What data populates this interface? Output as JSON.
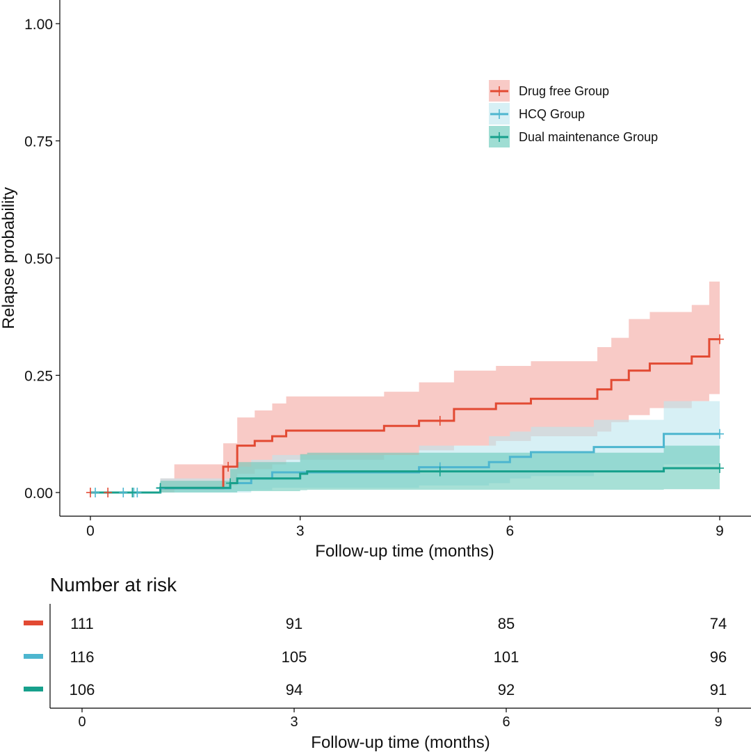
{
  "chart_data": {
    "type": "step",
    "title": "",
    "xlabel": "Follow-up time (months)",
    "ylabel": "Relapse probability",
    "xlim": [
      0,
      9
    ],
    "ylim": [
      0,
      1
    ],
    "x_ticks": [
      "0",
      "3",
      "6",
      "9"
    ],
    "y_ticks": [
      "0.00",
      "0.25",
      "0.50",
      "0.75",
      "1.00"
    ],
    "legend_placement": "top-right",
    "series": [
      {
        "name": "Drug free Group",
        "color": "#E24A33",
        "band_color": "#F4A7A0",
        "steps": [
          [
            0,
            0
          ],
          [
            1,
            0.009
          ],
          [
            1.9,
            0.055
          ],
          [
            2.1,
            0.1
          ],
          [
            2.35,
            0.11
          ],
          [
            2.6,
            0.12
          ],
          [
            2.8,
            0.132
          ],
          [
            4.2,
            0.142
          ],
          [
            4.7,
            0.153
          ],
          [
            5.2,
            0.178
          ],
          [
            5.8,
            0.19
          ],
          [
            6.3,
            0.2
          ],
          [
            7.25,
            0.22
          ],
          [
            7.45,
            0.24
          ],
          [
            7.7,
            0.26
          ],
          [
            8.0,
            0.275
          ],
          [
            8.6,
            0.29
          ],
          [
            8.85,
            0.327
          ],
          [
            9,
            0.327
          ]
        ],
        "lower": [
          [
            0,
            0
          ],
          [
            1,
            0
          ],
          [
            1.2,
            0.01
          ],
          [
            1.9,
            0.015
          ],
          [
            2.1,
            0.04
          ],
          [
            2.35,
            0.05
          ],
          [
            2.6,
            0.06
          ],
          [
            2.8,
            0.07
          ],
          [
            4.2,
            0.08
          ],
          [
            4.7,
            0.09
          ],
          [
            5.2,
            0.1
          ],
          [
            5.8,
            0.11
          ],
          [
            6.3,
            0.12
          ],
          [
            7.25,
            0.13
          ],
          [
            7.45,
            0.15
          ],
          [
            7.7,
            0.165
          ],
          [
            8.0,
            0.18
          ],
          [
            8.6,
            0.195
          ],
          [
            8.85,
            0.21
          ],
          [
            9,
            0.21
          ]
        ],
        "upper": [
          [
            0,
            0
          ],
          [
            1,
            0.03
          ],
          [
            1.2,
            0.06
          ],
          [
            1.9,
            0.105
          ],
          [
            2.1,
            0.16
          ],
          [
            2.35,
            0.175
          ],
          [
            2.6,
            0.19
          ],
          [
            2.8,
            0.205
          ],
          [
            4.2,
            0.215
          ],
          [
            4.7,
            0.235
          ],
          [
            5.2,
            0.26
          ],
          [
            5.8,
            0.27
          ],
          [
            6.3,
            0.28
          ],
          [
            7.25,
            0.31
          ],
          [
            7.45,
            0.33
          ],
          [
            7.7,
            0.37
          ],
          [
            8.0,
            0.385
          ],
          [
            8.6,
            0.4
          ],
          [
            8.85,
            0.45
          ],
          [
            9,
            0.45
          ]
        ],
        "censor_x": [
          0,
          0.25,
          1.97,
          5.0,
          9.0
        ],
        "at_risk": [
          111,
          91,
          85,
          74
        ]
      },
      {
        "name": "HCQ Group",
        "color": "#4DB6CF",
        "band_color": "#BDE6EF",
        "steps": [
          [
            0,
            0
          ],
          [
            1,
            0.009
          ],
          [
            2,
            0.02
          ],
          [
            2.3,
            0.03
          ],
          [
            2.6,
            0.043
          ],
          [
            4.7,
            0.054
          ],
          [
            5.7,
            0.065
          ],
          [
            6.0,
            0.076
          ],
          [
            6.3,
            0.086
          ],
          [
            7.2,
            0.097
          ],
          [
            8.2,
            0.125
          ],
          [
            9,
            0.125
          ]
        ],
        "lower": [
          [
            0,
            0
          ],
          [
            1,
            0
          ],
          [
            2,
            0
          ],
          [
            2.3,
            0.005
          ],
          [
            2.6,
            0.01
          ],
          [
            4.7,
            0.015
          ],
          [
            5.7,
            0.02
          ],
          [
            6.0,
            0.03
          ],
          [
            6.3,
            0.035
          ],
          [
            7.2,
            0.045
          ],
          [
            8.2,
            0.06
          ],
          [
            9,
            0.06
          ]
        ],
        "upper": [
          [
            0,
            0
          ],
          [
            1,
            0.03
          ],
          [
            2,
            0.055
          ],
          [
            2.3,
            0.07
          ],
          [
            2.6,
            0.08
          ],
          [
            4.7,
            0.1
          ],
          [
            5.7,
            0.12
          ],
          [
            6.0,
            0.13
          ],
          [
            6.3,
            0.14
          ],
          [
            7.2,
            0.155
          ],
          [
            8.2,
            0.195
          ],
          [
            9,
            0.195
          ]
        ],
        "censor_x": [
          0.07,
          0.47,
          0.62,
          0.67,
          1.0,
          5.0,
          9.0
        ],
        "at_risk": [
          116,
          105,
          101,
          96
        ]
      },
      {
        "name": "Dual maintenance Group",
        "color": "#17A08C",
        "band_color": "#5FC6B5",
        "steps": [
          [
            0,
            0
          ],
          [
            1,
            0.01
          ],
          [
            2,
            0.02
          ],
          [
            2.1,
            0.03
          ],
          [
            3.0,
            0.04
          ],
          [
            3.1,
            0.045
          ],
          [
            8.2,
            0.052
          ],
          [
            9,
            0.052
          ]
        ],
        "lower": [
          [
            0,
            0
          ],
          [
            1,
            0
          ],
          [
            2,
            0
          ],
          [
            2.1,
            0.003
          ],
          [
            3.0,
            0.005
          ],
          [
            3.1,
            0.006
          ],
          [
            8.2,
            0.007
          ],
          [
            9,
            0.007
          ]
        ],
        "upper": [
          [
            0,
            0
          ],
          [
            1,
            0.025
          ],
          [
            2,
            0.05
          ],
          [
            2.1,
            0.065
          ],
          [
            3.0,
            0.082
          ],
          [
            3.1,
            0.085
          ],
          [
            8.2,
            0.1
          ],
          [
            9,
            0.1
          ]
        ],
        "censor_x": [
          0.6,
          1.0,
          2.0,
          5.0,
          9.0
        ],
        "at_risk": [
          106,
          94,
          92,
          91
        ]
      }
    ],
    "risk_table": {
      "title": "Number at risk",
      "xlabel": "Follow-up time (months)",
      "x_ticks": [
        "0",
        "3",
        "6",
        "9"
      ],
      "rows": [
        {
          "label": "Drug free Group",
          "values": [
            "111",
            "91",
            "85",
            "74"
          ],
          "color": "#E24A33"
        },
        {
          "label": "HCQ Group",
          "values": [
            "116",
            "105",
            "101",
            "96"
          ],
          "color": "#4DB6CF"
        },
        {
          "label": "Dual maintenance Group",
          "values": [
            "106",
            "94",
            "92",
            "91"
          ],
          "color": "#17A08C"
        }
      ]
    }
  }
}
